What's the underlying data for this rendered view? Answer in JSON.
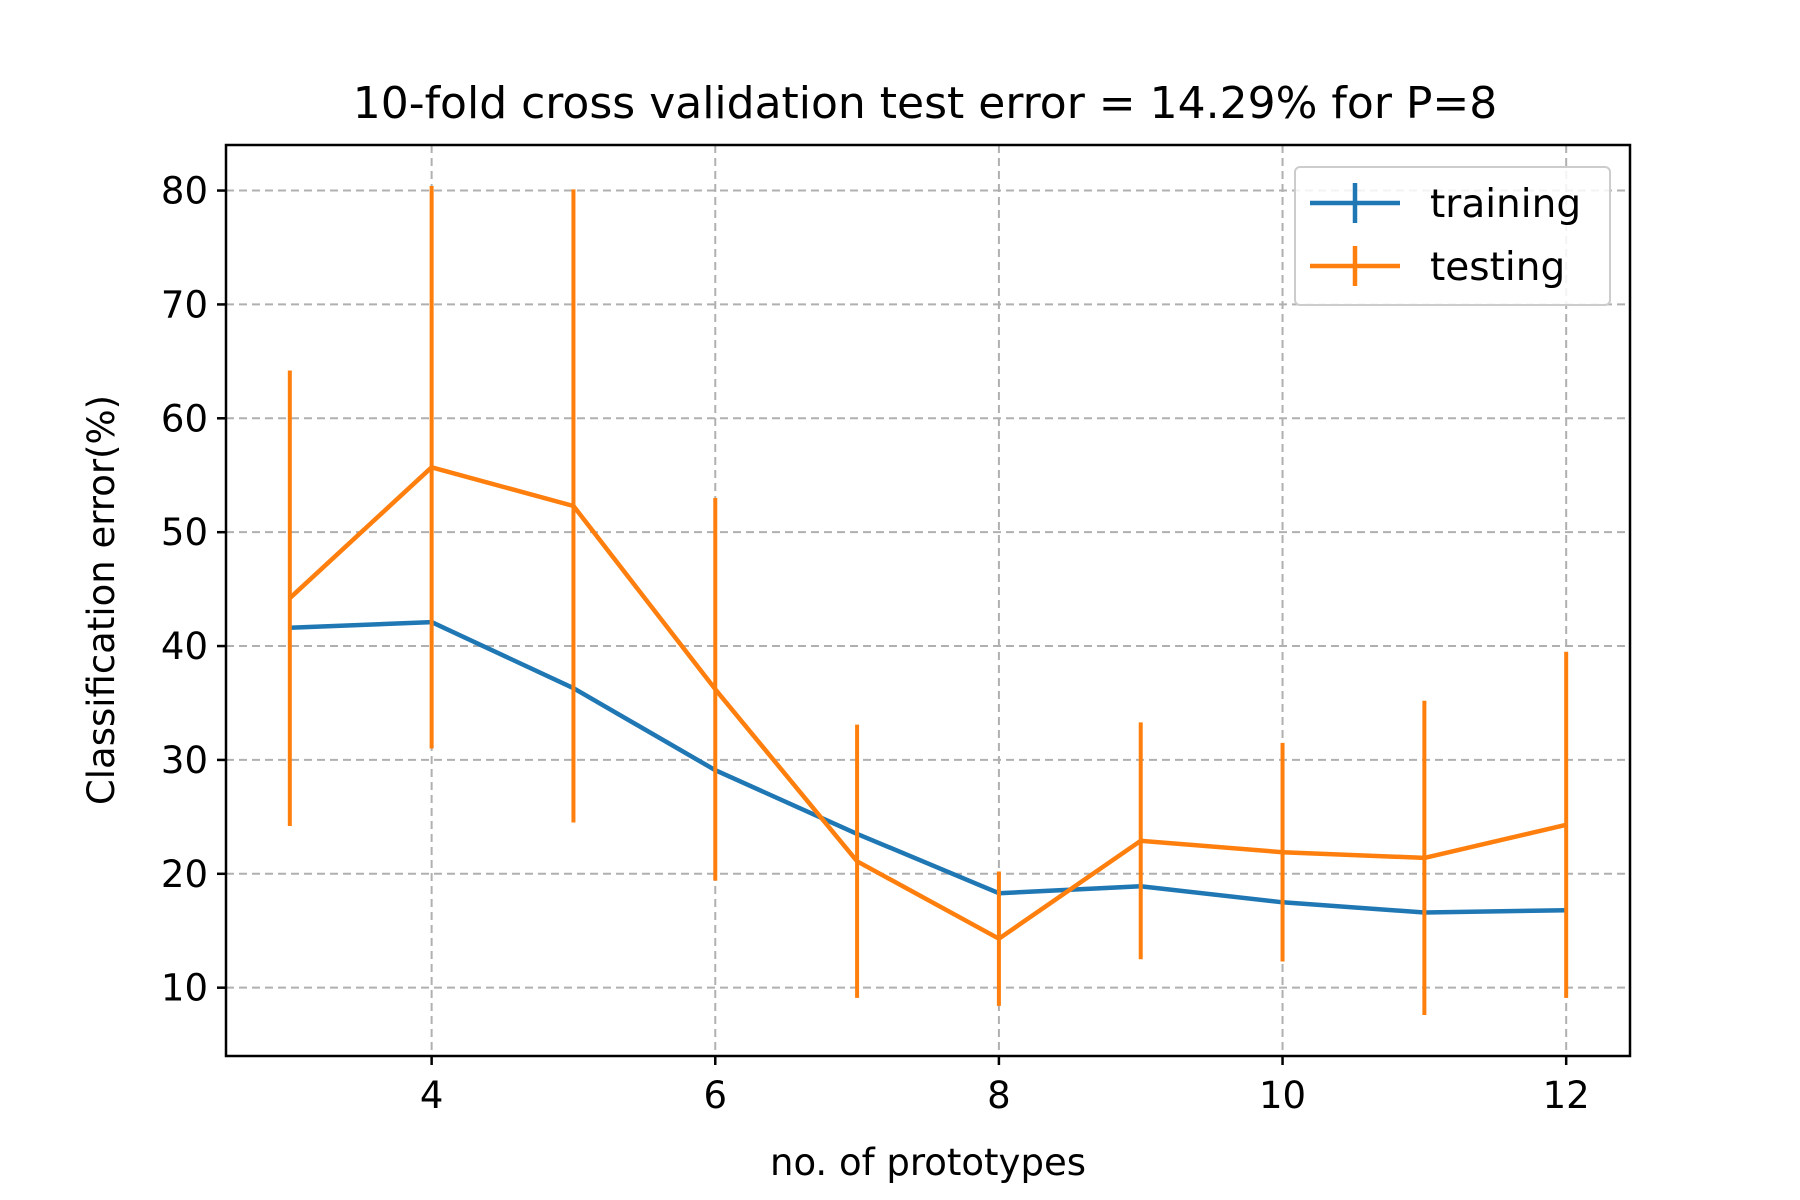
{
  "chart_data": {
    "type": "line",
    "title": "10-fold cross validation test error = 14.29% for P=8",
    "xlabel": "no. of prototypes",
    "ylabel": "Classification error(%)",
    "xlim": [
      2.55,
      12.45
    ],
    "ylim": [
      4,
      84
    ],
    "xticks": [
      4,
      6,
      8,
      10,
      12
    ],
    "yticks": [
      10,
      20,
      30,
      40,
      50,
      60,
      70,
      80
    ],
    "grid": true,
    "legend_position": "upper right",
    "x": [
      3,
      4,
      5,
      6,
      7,
      8,
      9,
      10,
      11,
      12
    ],
    "series": [
      {
        "name": "training",
        "color": "#1f77b4",
        "values": [
          41.6,
          42.1,
          36.3,
          29.1,
          23.5,
          18.3,
          18.9,
          17.5,
          16.6,
          16.8
        ]
      },
      {
        "name": "testing",
        "color": "#ff7f0e",
        "values": [
          44.2,
          55.7,
          52.3,
          36.2,
          21.1,
          14.3,
          22.9,
          21.9,
          21.4,
          24.3
        ],
        "error": [
          20.0,
          24.7,
          27.8,
          16.8,
          12.0,
          5.9,
          10.4,
          9.6,
          13.8,
          15.2
        ]
      }
    ]
  }
}
